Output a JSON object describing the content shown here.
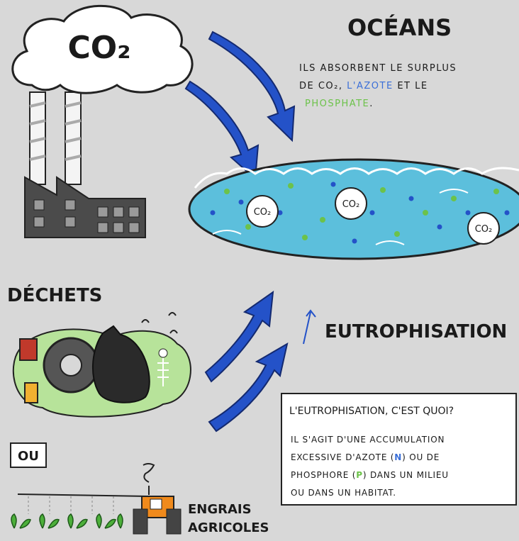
{
  "cloud_label": "CO₂",
  "oceans": {
    "title": "OCÉANS",
    "text": [
      "ILS ABSORBENT LE SURPLUS",
      "DE CO₂,",
      "L'AZOTE",
      "ET LE",
      "PHOSPHATE",
      "."
    ]
  },
  "ocean_bubbles": [
    "CO₂",
    "CO₂",
    "CO₂"
  ],
  "dechets": "DÉCHETS",
  "ou": "OU",
  "engrais": [
    "ENGRAIS",
    "AGRICOLES"
  ],
  "eutrophisation": "EUTROPHISATION",
  "definition": {
    "question": "L'EUTROPHISATION, C'EST QUOI?",
    "lines": [
      [
        "IL S'AGIT D'UNE ACCUMULATION"
      ],
      [
        "EXCESSIVE D'AZOTE (",
        "N",
        ") OU DE"
      ],
      [
        "PHOSPHORE (",
        "P",
        ") DANS UN MILIEU"
      ],
      [
        "OU DANS UN HABITAT."
      ]
    ]
  }
}
